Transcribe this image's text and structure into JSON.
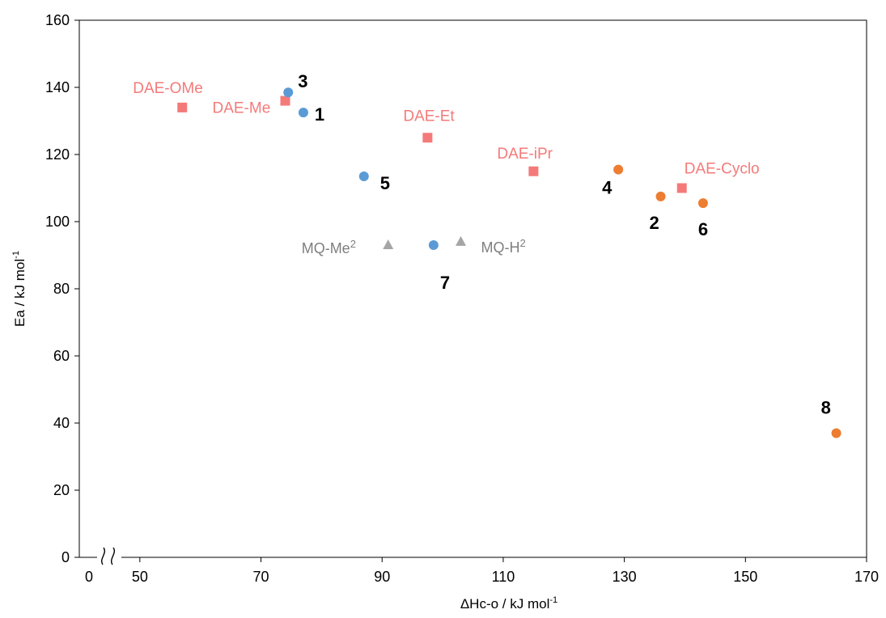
{
  "chart_data": {
    "type": "scatter",
    "xlabel": "ΔHc-o / kJ mol",
    "xlabel_sup": "-1",
    "ylabel": "Ea  / kJ mol",
    "ylabel_sup": "-1",
    "xlim": [
      40,
      170
    ],
    "ylim": [
      0,
      160
    ],
    "x_axis_break": true,
    "x_ticks": [
      "0",
      "50",
      "70",
      "90",
      "110",
      "130",
      "150",
      "170"
    ],
    "y_ticks": [
      "0",
      "20",
      "40",
      "60",
      "80",
      "100",
      "120",
      "140",
      "160"
    ],
    "grid": false,
    "series": [
      {
        "marker": "square",
        "color": "#f47a7a",
        "points": [
          {
            "label": "DAE-OMe",
            "x": 57,
            "y": 134
          },
          {
            "label": "DAE-Me",
            "x": 74,
            "y": 136
          },
          {
            "label": "DAE-Et",
            "x": 97.5,
            "y": 125
          },
          {
            "label": "DAE-iPr",
            "x": 115,
            "y": 115
          },
          {
            "label": "DAE-Cyclo",
            "x": 139.5,
            "y": 110
          }
        ]
      },
      {
        "marker": "circle",
        "color": "#5b9bd5",
        "points": [
          {
            "label": "3",
            "x": 74.5,
            "y": 138.5
          },
          {
            "label": "1",
            "x": 77,
            "y": 132.5
          },
          {
            "label": "5",
            "x": 87,
            "y": 113.5
          },
          {
            "label": "7",
            "x": 98.5,
            "y": 93
          }
        ]
      },
      {
        "marker": "circle",
        "color": "#ed7d31",
        "points": [
          {
            "label": "4",
            "x": 129,
            "y": 115.5
          },
          {
            "label": "2",
            "x": 136,
            "y": 107.5
          },
          {
            "label": "6",
            "x": 143,
            "y": 105.5
          },
          {
            "label": "8",
            "x": 165,
            "y": 37
          }
        ]
      },
      {
        "marker": "triangle",
        "color": "#a5a5a5",
        "points": [
          {
            "label": "MQ-Me",
            "label_sup": "2",
            "x": 91,
            "y": 93
          },
          {
            "label": "MQ-H",
            "label_sup": "2",
            "x": 103,
            "y": 94
          }
        ]
      }
    ]
  }
}
